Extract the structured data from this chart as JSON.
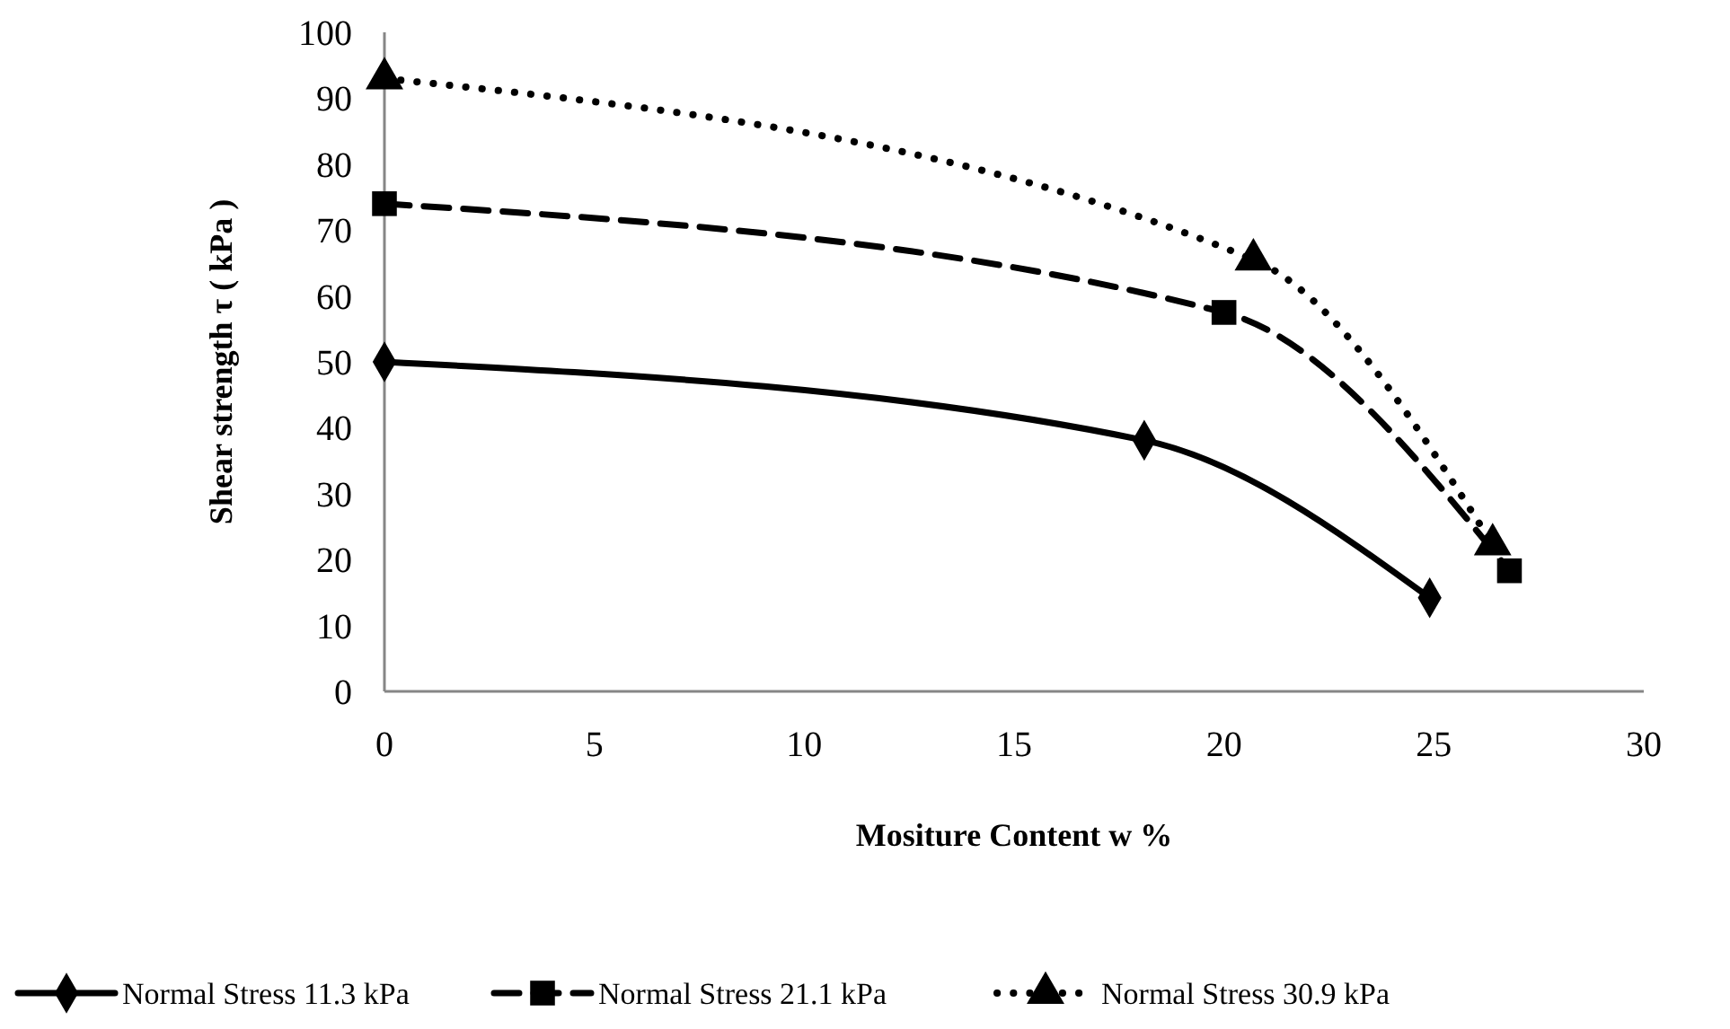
{
  "chart_data": {
    "type": "line",
    "xlabel": "Mositure Content w %",
    "ylabel": "Shear strength τ ( kPa )",
    "xlim": [
      0,
      30
    ],
    "xticks": [
      0,
      5,
      10,
      15,
      20,
      25,
      30
    ],
    "ylim": [
      0,
      100
    ],
    "yticks": [
      0,
      10,
      20,
      30,
      40,
      50,
      60,
      70,
      80,
      90,
      100
    ],
    "grid": false,
    "legend": "bottom",
    "series": [
      {
        "name": "Normal Stress 11.3 kPa",
        "color": "#000000",
        "marker": "diamond",
        "line_style": "solid",
        "x": [
          0,
          18.1,
          24.9
        ],
        "values": [
          50,
          38.1,
          14.2
        ]
      },
      {
        "name": "Normal Stress 21.1 kPa",
        "color": "#000000",
        "marker": "square",
        "line_style": "dashed",
        "x": [
          0,
          20,
          26.8
        ],
        "values": [
          74,
          57.5,
          18.3
        ]
      },
      {
        "name": "Normal Stress 30.9 kPa",
        "color": "#000000",
        "marker": "triangle",
        "line_style": "dotted",
        "x": [
          0,
          20.7,
          26.4
        ],
        "values": [
          93,
          65.5,
          22.3
        ]
      }
    ]
  }
}
